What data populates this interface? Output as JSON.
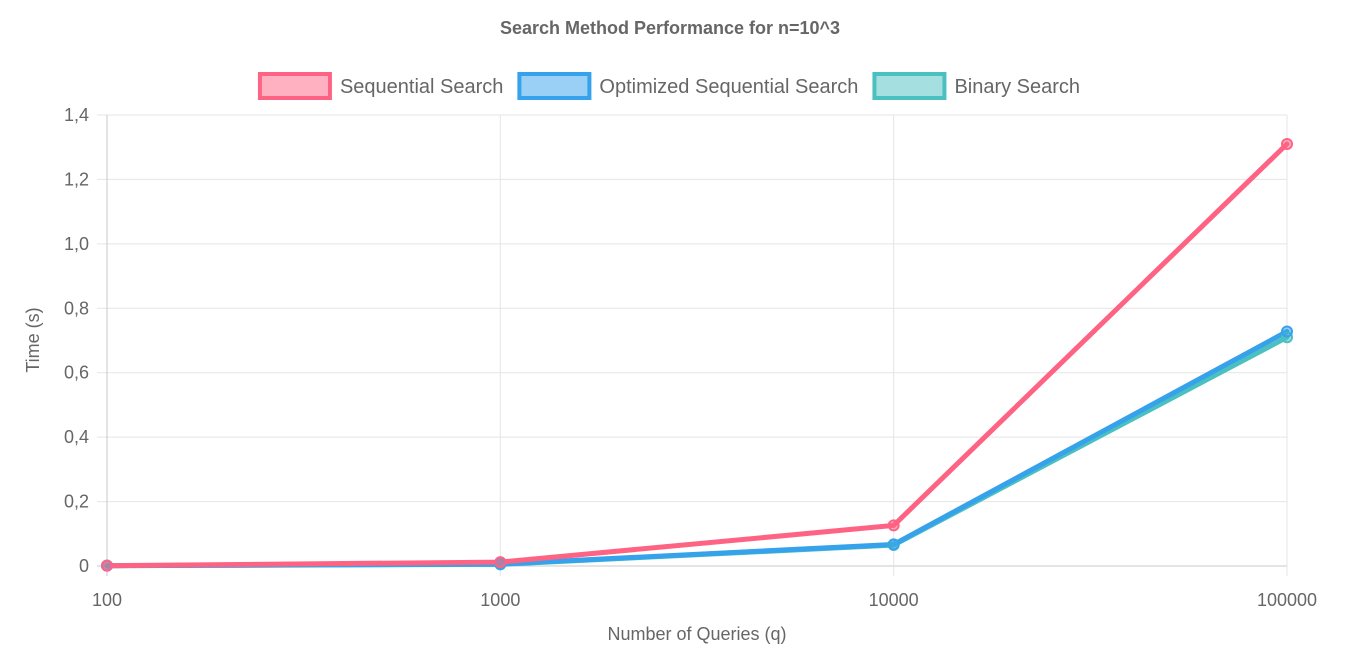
{
  "chart_data": {
    "type": "line",
    "title": "Search Method Performance for n=10^3",
    "xlabel": "Number of Queries (q)",
    "ylabel": "Time (s)",
    "x": [
      "100",
      "1000",
      "10000",
      "100000"
    ],
    "y_ticks": [
      "0",
      "0,2",
      "0,4",
      "0,6",
      "0,8",
      "1,0",
      "1,2",
      "1,4"
    ],
    "ylim": [
      0,
      1.4
    ],
    "grid": true,
    "legend_position": "top",
    "series": [
      {
        "name": "Sequential Search",
        "color": "#ff6384",
        "fill": "rgba(255,99,132,0.5)",
        "values": [
          0.001,
          0.012,
          0.126,
          1.31
        ]
      },
      {
        "name": "Optimized Sequential Search",
        "color": "#36a2eb",
        "fill": "rgba(54,162,235,0.5)",
        "values": [
          0.001,
          0.006,
          0.067,
          0.728
        ]
      },
      {
        "name": "Binary Search",
        "color": "#4bc0c0",
        "fill": "rgba(75,192,192,0.5)",
        "values": [
          0.001,
          0.005,
          0.065,
          0.71
        ]
      }
    ]
  }
}
